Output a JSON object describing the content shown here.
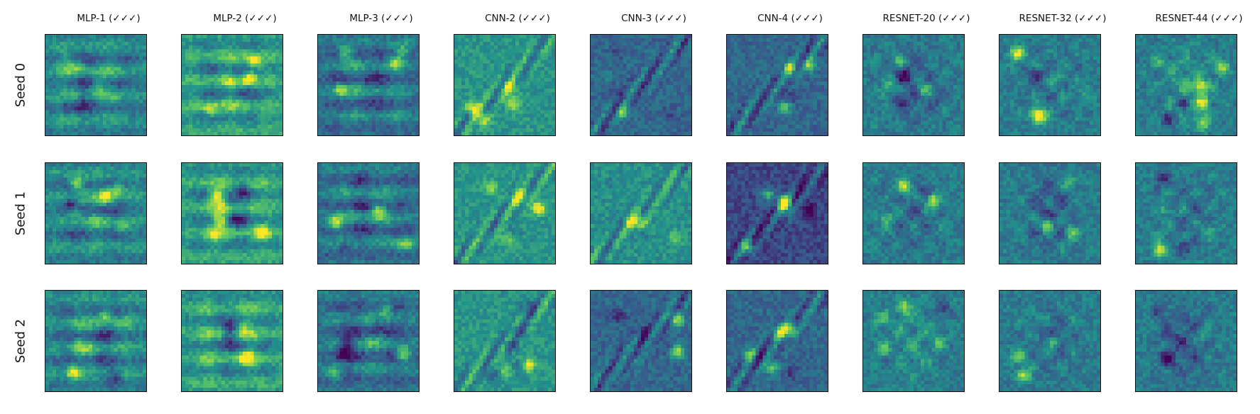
{
  "figure": {
    "columns": [
      {
        "id": "mlp-1",
        "title": "MLP-1 (✓✓✓)",
        "style": "mlp"
      },
      {
        "id": "mlp-2",
        "title": "MLP-2 (✓✓✓)",
        "style": "mlp-bright"
      },
      {
        "id": "mlp-3",
        "title": "MLP-3 (✓✓✓)",
        "style": "mlp-dark"
      },
      {
        "id": "cnn-2",
        "title": "CNN-2 (✓✓✓)",
        "style": "cnn"
      },
      {
        "id": "cnn-3",
        "title": "CNN-3 (✓✓✓)",
        "style": "cnn-dark"
      },
      {
        "id": "cnn-4",
        "title": "CNN-4 (✓✓✓)",
        "style": "cnn-dark"
      },
      {
        "id": "resnet-20",
        "title": "RESNET-20 (✓✓✓)",
        "style": "resnet"
      },
      {
        "id": "resnet-32",
        "title": "RESNET-32 (✓✓✓)",
        "style": "resnet"
      },
      {
        "id": "resnet-44",
        "title": "RESNET-44 (✓✓✓)",
        "style": "resnet"
      }
    ],
    "rows": [
      {
        "id": "seed-0",
        "label": "Seed 0"
      },
      {
        "id": "seed-1",
        "label": "Seed 1"
      },
      {
        "id": "seed-2",
        "label": "Seed 2"
      }
    ],
    "colormap": [
      "#440154",
      "#3b528b",
      "#21918c",
      "#5ec962",
      "#fde725"
    ]
  }
}
